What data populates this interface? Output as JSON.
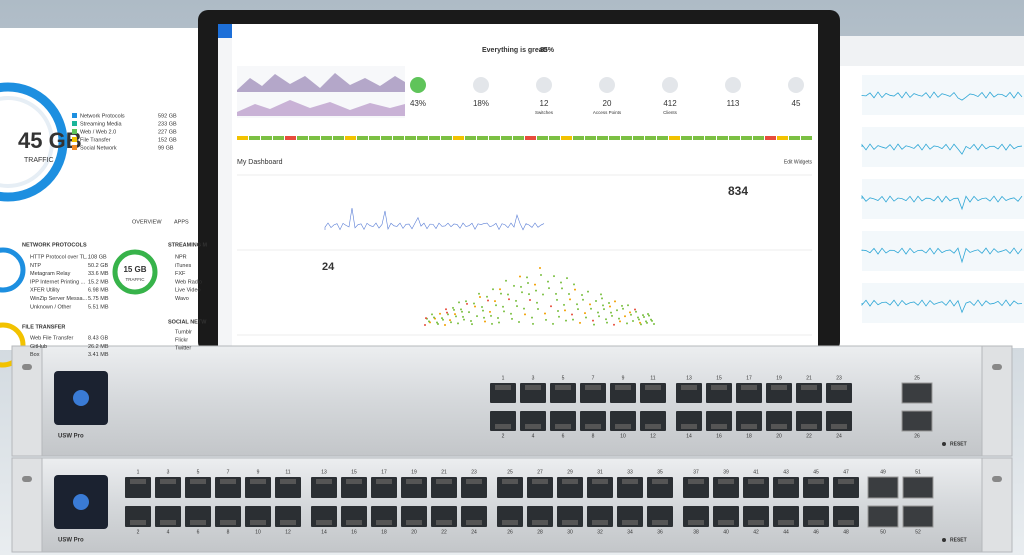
{
  "left_panel": {
    "total": "45 GB",
    "total_caption": "TRAFFIC",
    "categories": [
      {
        "name": "Network Protocols",
        "value": "592 GB",
        "color": "#1d8fe0"
      },
      {
        "name": "Streaming Media",
        "value": "233 GB",
        "color": "#1bb59a"
      },
      {
        "name": "Web / Web 2.0",
        "value": "227 GB",
        "color": "#5fc45a"
      },
      {
        "name": "File Transfer",
        "value": "152 GB",
        "color": "#f2c200"
      },
      {
        "name": "Social Network",
        "value": "99 GB",
        "color": "#f08a24"
      }
    ],
    "tabs": [
      "OVERVIEW",
      "APPS"
    ],
    "network_protocols": {
      "title": "NETWORK PROTOCOLS",
      "items": [
        {
          "name": "HTTP Protocol over TL...",
          "value": "108 GB"
        },
        {
          "name": "NTP",
          "value": "50.2 GB"
        },
        {
          "name": "Metagram Relay",
          "value": "33.6 MB"
        },
        {
          "name": "IPP Internet Printing ...",
          "value": "15.2 MB"
        },
        {
          "name": "XFER Utility",
          "value": "6.98 MB"
        },
        {
          "name": "WinZip Server Messa...",
          "value": "5.75 MB"
        },
        {
          "name": "Unknown / Other",
          "value": "5.51 MB"
        }
      ]
    },
    "streaming": {
      "title": "STREAMING M",
      "total": "15 GB",
      "caption": "TRAFFIC",
      "items": [
        "NPR",
        "iTunes",
        "FXF",
        "Web Radio",
        "Live Video",
        "Wavo"
      ]
    },
    "file_transfer": {
      "title": "FILE TRANSFER",
      "items": [
        {
          "name": "Web File Transfer",
          "value": "8.43 GB"
        },
        {
          "name": "GitHub",
          "value": "26.2 MB"
        },
        {
          "name": "Box",
          "value": "3.41 MB"
        }
      ]
    },
    "social": {
      "title": "SOCIAL NETW",
      "items": [
        "Tumblr",
        "Flickr",
        "Twitter"
      ]
    }
  },
  "dashboard": {
    "status": "Everything is great!",
    "score": "85%",
    "stats": [
      {
        "value": "43%"
      },
      {
        "value": "18%"
      },
      {
        "value": "12",
        "label": "Switches"
      },
      {
        "value": "20",
        "label": "Access Points"
      },
      {
        "value": "412",
        "label": "Clients"
      },
      {
        "value": "113"
      },
      {
        "value": "45"
      }
    ],
    "title": "My Dashboard",
    "edit": "Edit Widgets",
    "count": "834",
    "day": "24"
  },
  "switches": [
    {
      "model": "USW Pro",
      "reset": "RESET",
      "ports_top": [
        "1",
        "3",
        "5",
        "7",
        "9",
        "11",
        "13",
        "15",
        "17",
        "19",
        "21",
        "23"
      ],
      "ports_bottom": [
        "2",
        "4",
        "6",
        "8",
        "10",
        "12",
        "14",
        "16",
        "18",
        "20",
        "22",
        "24"
      ],
      "sfp_top": [
        "25"
      ],
      "sfp_bottom": [
        "26"
      ]
    },
    {
      "model": "USW Pro",
      "reset": "RESET",
      "ports_top": [
        "1",
        "3",
        "5",
        "7",
        "9",
        "11",
        "13",
        "15",
        "17",
        "19",
        "21",
        "23",
        "25",
        "27",
        "29",
        "31",
        "33",
        "35",
        "37",
        "39",
        "41",
        "43",
        "45",
        "47"
      ],
      "ports_bottom": [
        "2",
        "4",
        "6",
        "8",
        "10",
        "12",
        "14",
        "16",
        "18",
        "20",
        "22",
        "24",
        "26",
        "28",
        "30",
        "32",
        "34",
        "36",
        "38",
        "40",
        "42",
        "44",
        "46",
        "48"
      ],
      "sfp_top": [
        "49",
        "51"
      ],
      "sfp_bottom": [
        "50",
        "52"
      ]
    }
  ]
}
